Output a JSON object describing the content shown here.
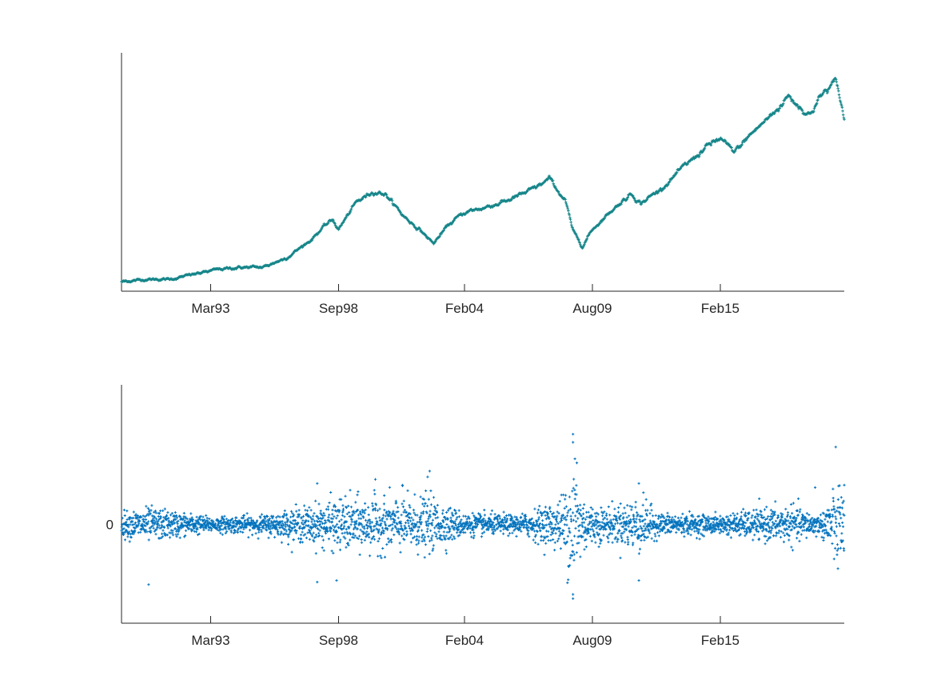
{
  "chart_data": [
    {
      "type": "scatter",
      "title": "",
      "xlabel": "",
      "ylabel": "",
      "marker": "+",
      "color": "#17868a",
      "grid": false,
      "x_tick_labels": [
        "Mar93",
        "Sep98",
        "Feb04",
        "Aug09",
        "Feb15"
      ],
      "x_ticks": [
        "1993-03",
        "1998-09",
        "2004-02",
        "2009-08",
        "2015-02"
      ],
      "xlim": [
        "1989-05",
        "2020-06"
      ],
      "y_tick_labels": [],
      "series": [
        {
          "x": [
            "1989-05",
            "1990-06",
            "1991-06",
            "1992-06",
            "1993-06",
            "1994-06",
            "1995-06",
            "1996-06",
            "1997-06",
            "1997-12",
            "1998-06",
            "1998-09",
            "1999-06",
            "2000-03",
            "2000-09",
            "2001-06",
            "2002-04",
            "2002-10",
            "2003-06",
            "2004-02",
            "2004-12",
            "2005-12",
            "2006-12",
            "2007-10",
            "2008-06",
            "2008-10",
            "2009-03",
            "2009-08",
            "2010-06",
            "2011-04",
            "2011-09",
            "2012-06",
            "2013-06",
            "2014-06",
            "2015-02",
            "2015-09",
            "2016-06",
            "2017-06",
            "2018-01",
            "2018-12",
            "2019-06",
            "2020-02",
            "2020-06"
          ],
          "y": [
            0.04,
            0.05,
            0.05,
            0.07,
            0.09,
            0.1,
            0.1,
            0.14,
            0.21,
            0.26,
            0.3,
            0.26,
            0.37,
            0.42,
            0.41,
            0.32,
            0.25,
            0.2,
            0.28,
            0.33,
            0.35,
            0.38,
            0.42,
            0.47,
            0.38,
            0.25,
            0.19,
            0.26,
            0.34,
            0.41,
            0.37,
            0.42,
            0.51,
            0.6,
            0.64,
            0.58,
            0.66,
            0.75,
            0.82,
            0.74,
            0.82,
            0.88,
            0.72
          ]
        }
      ]
    },
    {
      "type": "scatter",
      "title": "",
      "xlabel": "",
      "ylabel": "",
      "marker": "+",
      "color": "#0072bd",
      "grid": false,
      "x_tick_labels": [
        "Mar93",
        "Sep98",
        "Feb04",
        "Aug09",
        "Feb15"
      ],
      "x_ticks": [
        "1993-03",
        "1998-09",
        "2004-02",
        "2009-08",
        "2015-02"
      ],
      "xlim": [
        "1989-05",
        "2020-06"
      ],
      "ylim": [
        -0.12,
        0.17
      ],
      "y_ticks": [
        0
      ],
      "y_tick_labels": [
        "0"
      ],
      "series": [
        {
          "x": [
            "1989-05",
            "1990-08",
            "1993-03",
            "1995-06",
            "1997-06",
            "1998-09",
            "2000-09",
            "2002-07",
            "2003-06",
            "2004-02",
            "2006-06",
            "2007-07",
            "2008-03",
            "2008-09",
            "2008-11",
            "2009-01",
            "2009-08",
            "2010-06",
            "2011-08",
            "2012-06",
            "2015-02",
            "2016-06",
            "2018-02",
            "2019-06",
            "2020-03",
            "2020-06"
          ],
          "vol": [
            0.013,
            0.018,
            0.008,
            0.01,
            0.02,
            0.028,
            0.028,
            0.03,
            0.02,
            0.012,
            0.01,
            0.02,
            0.025,
            0.06,
            0.085,
            0.04,
            0.02,
            0.018,
            0.03,
            0.012,
            0.01,
            0.015,
            0.02,
            0.01,
            0.055,
            0.03
          ],
          "outliers": [
            [
              "1990-07",
              -0.073
            ],
            [
              "1997-10",
              -0.07
            ],
            [
              "1998-08",
              -0.068
            ],
            [
              "1997-10",
              0.05
            ],
            [
              "2000-04",
              0.055
            ],
            [
              "2001-06",
              0.048
            ],
            [
              "2002-07",
              0.058
            ],
            [
              "2002-08",
              0.065
            ],
            [
              "2008-10",
              0.11
            ],
            [
              "2008-10",
              0.1
            ],
            [
              "2008-10",
              -0.09
            ],
            [
              "2008-11",
              0.08
            ],
            [
              "2008-12",
              0.075
            ],
            [
              "2008-10",
              -0.085
            ],
            [
              "2011-08",
              -0.068
            ],
            [
              "2011-08",
              0.05
            ],
            [
              "2020-06",
              0.048
            ],
            [
              "2019-03",
              0.045
            ]
          ]
        }
      ]
    }
  ]
}
